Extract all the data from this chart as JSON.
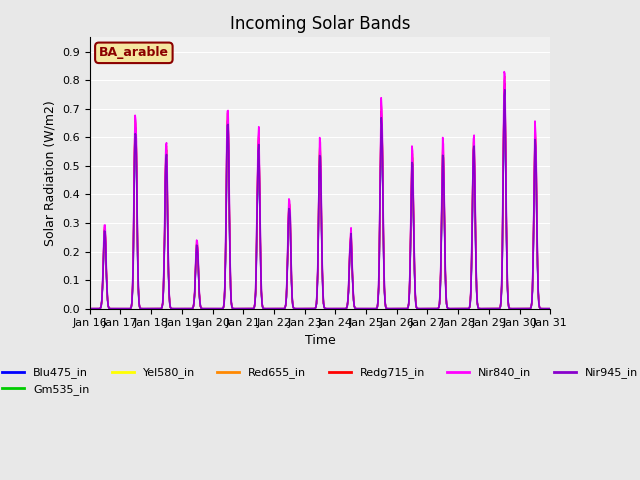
{
  "title": "Incoming Solar Bands",
  "xlabel": "Time",
  "ylabel": "Solar Radiation (W/m2)",
  "ylim": [
    0,
    0.95
  ],
  "yticks": [
    0.0,
    0.1,
    0.2,
    0.3,
    0.4,
    0.5,
    0.6,
    0.7,
    0.8,
    0.9
  ],
  "annotation_text": "BA_arable",
  "annotation_color": "#8B0000",
  "annotation_bg": "#f5e6a0",
  "annotation_border": "#8B0000",
  "series": {
    "Blu475_in": {
      "color": "#0000ff",
      "lw": 1.0
    },
    "Gm535_in": {
      "color": "#00cc00",
      "lw": 1.0
    },
    "Yel580_in": {
      "color": "#ffff00",
      "lw": 1.0
    },
    "Red655_in": {
      "color": "#ff8800",
      "lw": 1.0
    },
    "Redg715_in": {
      "color": "#ff0000",
      "lw": 1.0
    },
    "Nir840_in": {
      "color": "#ff00ff",
      "lw": 1.2
    },
    "Nir945_in": {
      "color": "#8800cc",
      "lw": 1.2
    }
  },
  "background_color": "#e8e8e8",
  "plot_bg": "#f0f0f0",
  "n_days": 15,
  "day_peaks": [
    0.33,
    0.78,
    0.63,
    0.28,
    0.8,
    0.67,
    0.45,
    0.65,
    0.3,
    0.82,
    0.6,
    0.63,
    0.71,
    0.89,
    0.71
  ],
  "xticklabels": [
    "Jan 16",
    "Jan 17",
    "Jan 18",
    "Jan 19",
    "Jan 20",
    "Jan 21",
    "Jan 22",
    "Jan 23",
    "Jan 24",
    "Jan 25",
    "Jan 26",
    "Jan 27",
    "Jan 28",
    "Jan 29",
    "Jan 30",
    "Jan 31"
  ]
}
